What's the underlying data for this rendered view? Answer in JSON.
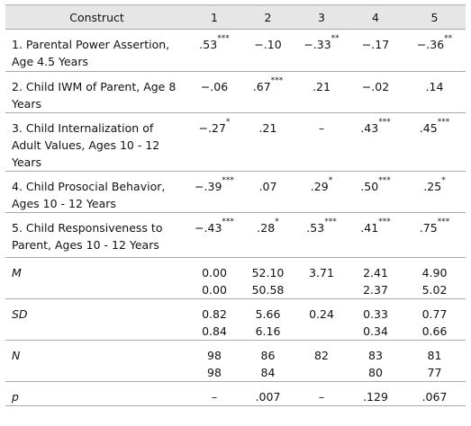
{
  "header": {
    "construct": "Construct",
    "cols": [
      "1",
      "2",
      "3",
      "4",
      "5"
    ]
  },
  "rows": [
    {
      "label": "1. Parental Power Assertion, Age 4.5 Years",
      "cells": [
        [
          ".53***"
        ],
        [
          "−.10"
        ],
        [
          "−.33**"
        ],
        [
          "−.17"
        ],
        [
          "−.36**"
        ]
      ]
    },
    {
      "label": "2. Child IWM of Parent, Age 8 Years",
      "cells": [
        [
          "−.06"
        ],
        [
          ".67***"
        ],
        [
          ".21"
        ],
        [
          "−.02"
        ],
        [
          ".14"
        ]
      ]
    },
    {
      "label": "3. Child Internalization of Adult Values, Ages 10 - 12 Years",
      "cells": [
        [
          "−.27*"
        ],
        [
          ".21"
        ],
        [
          "–"
        ],
        [
          ".43***"
        ],
        [
          ".45***"
        ]
      ]
    },
    {
      "label": "4. Child Prosocial Behavior, Ages 10 - 12 Years",
      "cells": [
        [
          "−.39***"
        ],
        [
          ".07"
        ],
        [
          ".29*"
        ],
        [
          ".50***"
        ],
        [
          ".25*"
        ]
      ]
    },
    {
      "label": "5. Child Responsiveness to Parent, Ages 10 - 12 Years",
      "cells": [
        [
          "−.43***"
        ],
        [
          ".28*"
        ],
        [
          ".53***"
        ],
        [
          ".41***"
        ],
        [
          ".75***"
        ]
      ]
    },
    {
      "label": "M",
      "italic": true,
      "cells": [
        [
          "0.00",
          "0.00"
        ],
        [
          "52.10",
          "50.58"
        ],
        [
          "3.71"
        ],
        [
          "2.41",
          "2.37"
        ],
        [
          "4.90",
          "5.02"
        ]
      ]
    },
    {
      "label": "SD",
      "italic": true,
      "cells": [
        [
          "0.82",
          "0.84"
        ],
        [
          "5.66",
          "6.16"
        ],
        [
          "0.24"
        ],
        [
          "0.33",
          "0.34"
        ],
        [
          "0.77",
          "0.66"
        ]
      ]
    },
    {
      "label": "N",
      "italic": true,
      "cells": [
        [
          "98",
          "98"
        ],
        [
          "86",
          "84"
        ],
        [
          "82"
        ],
        [
          "83",
          "80"
        ],
        [
          "81",
          "77"
        ]
      ]
    },
    {
      "label": "p",
      "italic": true,
      "cells": [
        [
          "–"
        ],
        [
          ".007"
        ],
        [
          "–"
        ],
        [
          ".129"
        ],
        [
          ".067"
        ]
      ]
    }
  ]
}
